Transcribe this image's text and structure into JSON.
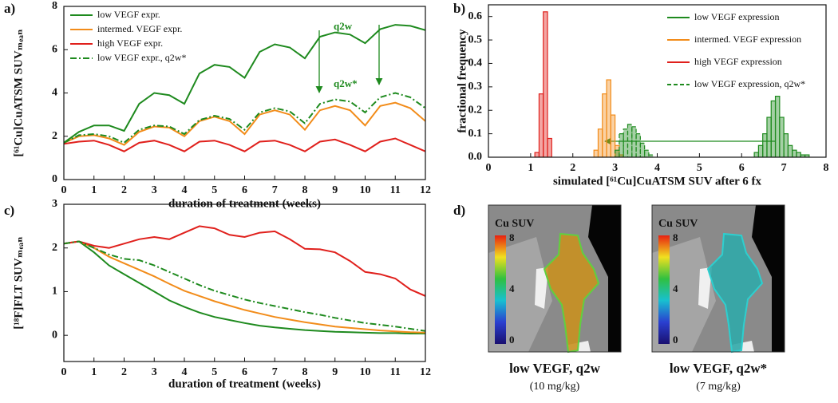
{
  "chart_data": [
    {
      "type": "line",
      "panel_label": "a)",
      "x_label": "duration of treatment (weeks)",
      "y_label": "[⁶¹Cu]CuATSM SUVₘₑₐₙ",
      "xlim": [
        0,
        12
      ],
      "xticks": [
        0,
        1,
        2,
        3,
        4,
        5,
        6,
        7,
        8,
        9,
        10,
        11,
        12
      ],
      "ylim": [
        0,
        8
      ],
      "yticks": [
        0,
        2,
        4,
        6,
        8
      ],
      "legend": "upper left",
      "annotations": [
        "q2w",
        "q2w*"
      ],
      "x": [
        0,
        0.5,
        1,
        1.5,
        2,
        2.5,
        3,
        3.5,
        4,
        4.5,
        5,
        5.5,
        6,
        6.5,
        7,
        7.5,
        8,
        8.5,
        9,
        9.5,
        10,
        10.5,
        11,
        11.5,
        12
      ],
      "series": [
        {
          "name": "low VEGF expr.",
          "color": "#1e8a1e",
          "line_style": "solid",
          "values": [
            1.7,
            2.2,
            2.5,
            2.5,
            2.25,
            3.5,
            4.0,
            3.9,
            3.5,
            4.9,
            5.3,
            5.2,
            4.7,
            5.9,
            6.25,
            6.1,
            5.6,
            6.6,
            6.8,
            6.7,
            6.3,
            6.95,
            7.15,
            7.1,
            6.9
          ]
        },
        {
          "name": "intermed. VEGF expr.",
          "color": "#f28c1a",
          "line_style": "solid",
          "values": [
            1.7,
            2.0,
            2.05,
            1.9,
            1.6,
            2.2,
            2.45,
            2.4,
            2.0,
            2.7,
            2.9,
            2.7,
            2.1,
            3.0,
            3.2,
            3.0,
            2.3,
            3.2,
            3.4,
            3.2,
            2.5,
            3.4,
            3.55,
            3.3,
            2.7
          ]
        },
        {
          "name": "high VEGF expr.",
          "color": "#e0201c",
          "line_style": "solid",
          "values": [
            1.65,
            1.75,
            1.8,
            1.6,
            1.3,
            1.7,
            1.8,
            1.6,
            1.3,
            1.75,
            1.8,
            1.6,
            1.3,
            1.75,
            1.8,
            1.6,
            1.3,
            1.75,
            1.85,
            1.6,
            1.3,
            1.75,
            1.9,
            1.6,
            1.3
          ]
        },
        {
          "name": "low VEGF expr., q2w*",
          "color": "#1e8a1e",
          "line_style": "dashdot",
          "values": [
            1.7,
            2.05,
            2.1,
            2.0,
            1.7,
            2.3,
            2.5,
            2.45,
            2.1,
            2.75,
            2.95,
            2.8,
            2.3,
            3.1,
            3.3,
            3.15,
            2.6,
            3.5,
            3.7,
            3.6,
            3.1,
            3.8,
            4.0,
            3.8,
            3.3
          ]
        }
      ]
    },
    {
      "type": "histogram",
      "panel_label": "b)",
      "x_label": "simulated [⁶¹Cu]CuATSM SUV after 6 fx",
      "y_label": "fractional frequency",
      "xlim": [
        0,
        8
      ],
      "xticks": [
        0,
        1,
        2,
        3,
        4,
        5,
        6,
        7,
        8
      ],
      "ylim": [
        0,
        0.65
      ],
      "yticks": [
        {
          "value": 0,
          "label": "0.0"
        },
        0.1,
        0.2,
        0.3,
        0.4,
        0.5,
        0.6
      ],
      "legend": "upper right",
      "series": [
        {
          "name": "low VEGF expression",
          "color": "#1e8a1e",
          "line_style": "solid",
          "bins": [
            6.3,
            6.4,
            6.5,
            6.6,
            6.7,
            6.8,
            6.9,
            7.0,
            7.1,
            7.2,
            7.3,
            7.4,
            7.5,
            7.6
          ],
          "values": [
            0.02,
            0.05,
            0.1,
            0.17,
            0.24,
            0.26,
            0.17,
            0.1,
            0.05,
            0.03,
            0.02,
            0.01,
            0.01
          ]
        },
        {
          "name": "intermed. VEGF expression",
          "color": "#f28c1a",
          "line_style": "solid",
          "bins": [
            2.5,
            2.6,
            2.7,
            2.8,
            2.9,
            3.0,
            3.1,
            3.2
          ],
          "values": [
            0.03,
            0.12,
            0.27,
            0.33,
            0.18,
            0.05,
            0.01
          ]
        },
        {
          "name": "high VEGF expression",
          "color": "#e0201c",
          "line_style": "solid",
          "bins": [
            1.1,
            1.2,
            1.3,
            1.4,
            1.5
          ],
          "values": [
            0.02,
            0.27,
            0.62,
            0.08
          ]
        },
        {
          "name": "low VEGF expression, q2w*",
          "color": "#1e8a1e",
          "line_style": "dashed",
          "bins": [
            3.0,
            3.1,
            3.2,
            3.3,
            3.4,
            3.5,
            3.6,
            3.7,
            3.8,
            3.9
          ],
          "values": [
            0.03,
            0.1,
            0.12,
            0.14,
            0.13,
            0.1,
            0.06,
            0.03,
            0.01
          ]
        }
      ]
    },
    {
      "type": "line",
      "panel_label": "c)",
      "x_label": "duration of treatment (weeks)",
      "y_label": "[¹⁸F]FLT SUVₘₑₐₙ",
      "xlim": [
        0,
        12
      ],
      "xticks": [
        0,
        1,
        2,
        3,
        4,
        5,
        6,
        7,
        8,
        9,
        10,
        11,
        12
      ],
      "ylim": [
        -0.6,
        3
      ],
      "yticks": [
        0,
        1,
        2,
        3
      ],
      "x": [
        0,
        0.5,
        1,
        1.5,
        2,
        2.5,
        3,
        3.5,
        4,
        4.5,
        5,
        5.5,
        6,
        6.5,
        7,
        7.5,
        8,
        8.5,
        9,
        9.5,
        10,
        10.5,
        11,
        11.5,
        12
      ],
      "series": [
        {
          "color": "#1e8a1e",
          "line_style": "solid",
          "values": [
            2.1,
            2.15,
            1.9,
            1.6,
            1.4,
            1.2,
            1.0,
            0.8,
            0.65,
            0.52,
            0.42,
            0.35,
            0.28,
            0.22,
            0.18,
            0.15,
            0.12,
            0.1,
            0.08,
            0.07,
            0.06,
            0.05,
            0.05,
            0.04,
            0.04
          ]
        },
        {
          "color": "#f28c1a",
          "line_style": "solid",
          "values": [
            2.1,
            2.15,
            2.0,
            1.8,
            1.65,
            1.5,
            1.35,
            1.18,
            1.02,
            0.9,
            0.78,
            0.68,
            0.58,
            0.5,
            0.42,
            0.36,
            0.3,
            0.25,
            0.2,
            0.17,
            0.14,
            0.11,
            0.09,
            0.07,
            0.06
          ]
        },
        {
          "color": "#e0201c",
          "line_style": "solid",
          "values": [
            2.1,
            2.15,
            2.05,
            2.0,
            2.1,
            2.2,
            2.25,
            2.2,
            2.35,
            2.5,
            2.45,
            2.3,
            2.25,
            2.35,
            2.38,
            2.2,
            1.98,
            1.97,
            1.9,
            1.7,
            1.45,
            1.4,
            1.3,
            1.05,
            0.9
          ]
        },
        {
          "color": "#1e8a1e",
          "line_style": "dashdot",
          "values": [
            2.1,
            2.15,
            2.0,
            1.85,
            1.75,
            1.72,
            1.6,
            1.45,
            1.3,
            1.15,
            1.02,
            0.92,
            0.82,
            0.74,
            0.67,
            0.6,
            0.53,
            0.47,
            0.4,
            0.34,
            0.28,
            0.24,
            0.2,
            0.15,
            0.1
          ]
        }
      ]
    }
  ],
  "images": {
    "panel_label": "d)",
    "panels": [
      {
        "colorbar_title": "Cu SUV",
        "colorbar_ticks": [
          8,
          4,
          0
        ],
        "caption": "low VEGF, q2w",
        "subcaption": "(10 mg/kg)"
      },
      {
        "colorbar_title": "Cu SUV",
        "colorbar_ticks": [
          8,
          4,
          0
        ],
        "caption": "low VEGF, q2w*",
        "subcaption": "(7 mg/kg)"
      }
    ]
  }
}
